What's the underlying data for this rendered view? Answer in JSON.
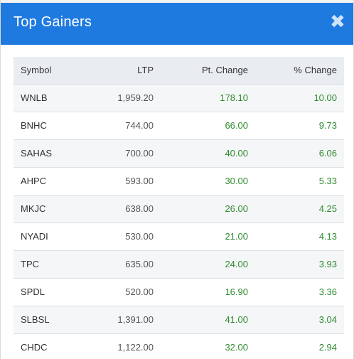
{
  "dialog": {
    "title": "Top Gainers",
    "close_symbol": "✖",
    "close_icon": "close-icon"
  },
  "table": {
    "headers": [
      "Symbol",
      "LTP",
      "Pt. Change",
      "% Change"
    ],
    "rows": [
      [
        "WNLB",
        "1,959.20",
        "178.10",
        "10.00"
      ],
      [
        "BNHC",
        "744.00",
        "66.00",
        "9.73"
      ],
      [
        "SAHAS",
        "700.00",
        "40.00",
        "6.06"
      ],
      [
        "AHPC",
        "593.00",
        "30.00",
        "5.33"
      ],
      [
        "MKJC",
        "638.00",
        "26.00",
        "4.25"
      ],
      [
        "NYADI",
        "530.00",
        "21.00",
        "4.13"
      ],
      [
        "TPC",
        "635.00",
        "24.00",
        "3.93"
      ],
      [
        "SPDL",
        "520.00",
        "16.90",
        "3.36"
      ],
      [
        "SLBSL",
        "1,391.00",
        "41.00",
        "3.04"
      ],
      [
        "CHDC",
        "1,122.00",
        "32.00",
        "2.94"
      ]
    ]
  },
  "colors": {
    "header_bg": "#1f7ae0",
    "gain": "#2e8b2e"
  }
}
